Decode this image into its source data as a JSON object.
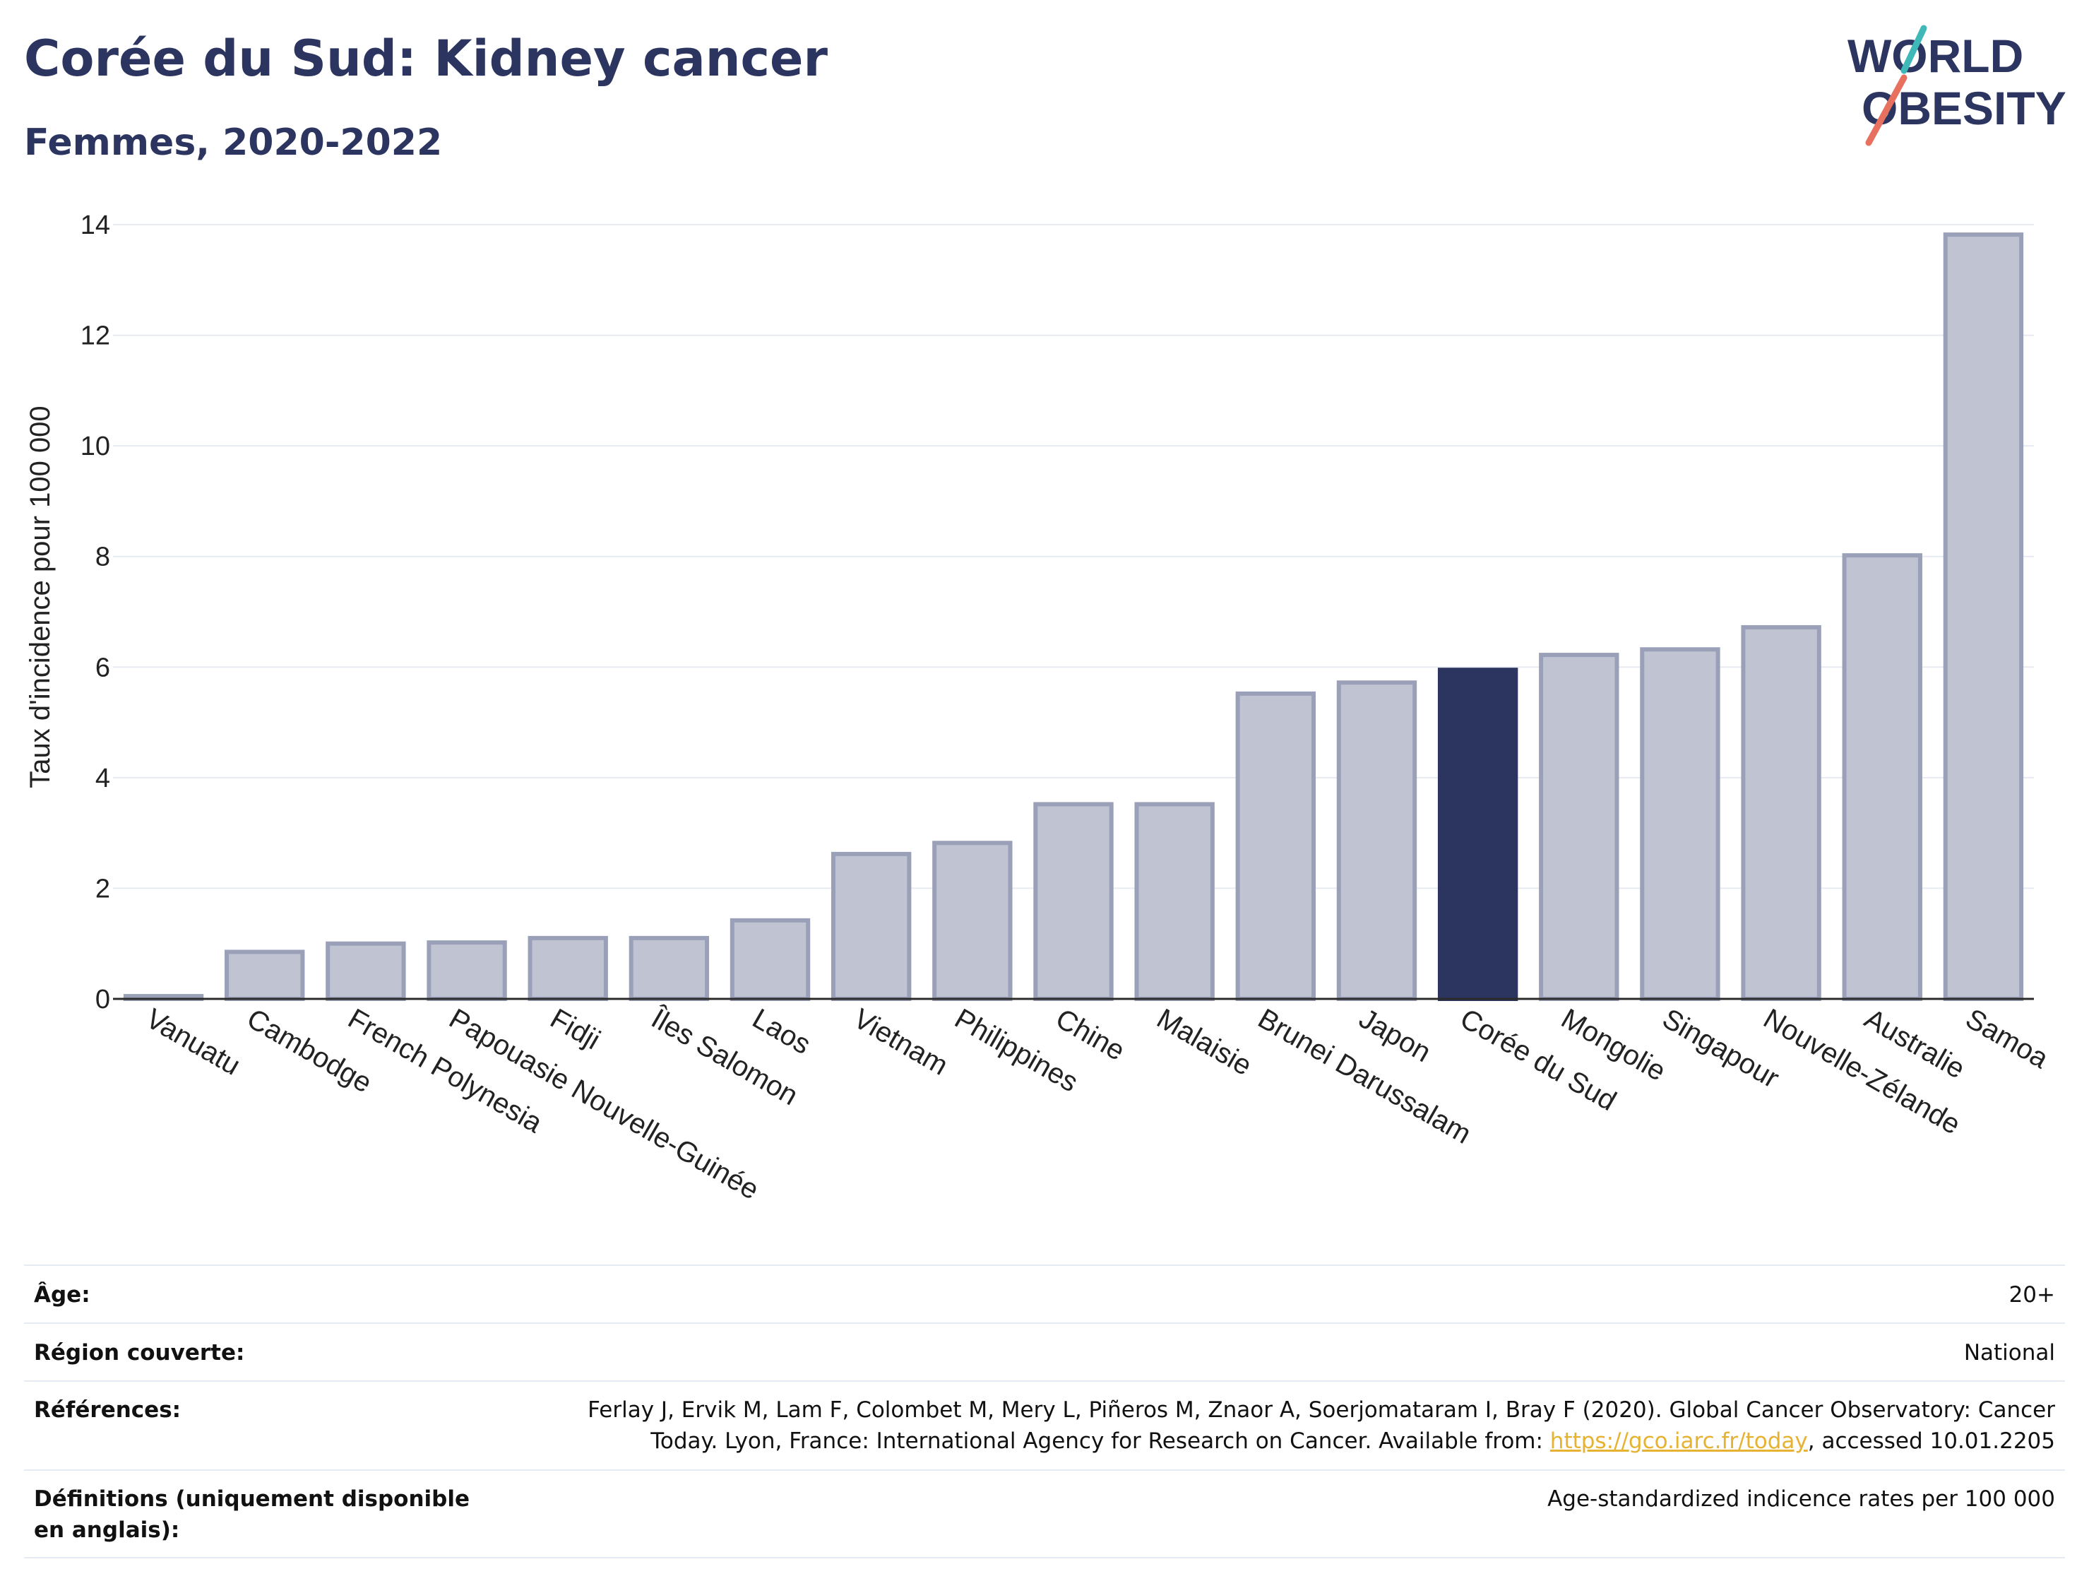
{
  "header": {
    "title": "Corée du Sud: Kidney cancer",
    "subtitle": "Femmes, 2020-2022"
  },
  "logo": {
    "line1": "WORLD",
    "line2": "OBESITY",
    "accent_teal": "#3fb8b8",
    "accent_coral": "#e8705f"
  },
  "colors": {
    "bar": "#c0c4d2",
    "bar_border": "#9aa0b8",
    "highlight": "#2b3560",
    "text": "#2b3560",
    "link": "#e6b232"
  },
  "chart_data": {
    "type": "bar",
    "title": "Corée du Sud: Kidney cancer",
    "subtitle": "Femmes, 2020-2022",
    "ylabel": "Taux d'incidence pour 100 000",
    "xlabel": "",
    "ylim": [
      0,
      14
    ],
    "yticks": [
      0,
      2,
      4,
      6,
      8,
      10,
      12,
      14
    ],
    "grid": true,
    "highlight": "Corée du Sud",
    "categories": [
      "Vanuatu",
      "Cambodge",
      "French Polynesia",
      "Papouasie Nouvelle-Guinée",
      "Fidji",
      "Îles Salomon",
      "Laos",
      "Vietnam",
      "Philippines",
      "Chine",
      "Malaisie",
      "Brunei Darussalam",
      "Japon",
      "Corée du Sud",
      "Mongolie",
      "Singapour",
      "Nouvelle-Zélande",
      "Australie",
      "Samoa"
    ],
    "values": [
      0.05,
      0.85,
      1.0,
      1.02,
      1.1,
      1.1,
      1.42,
      2.62,
      2.82,
      3.52,
      3.52,
      5.52,
      5.72,
      5.95,
      6.22,
      6.32,
      6.72,
      8.02,
      13.82
    ]
  },
  "meta": {
    "rows": [
      {
        "label": "Âge:",
        "value": "20+"
      },
      {
        "label": "Région couverte:",
        "value": "National"
      },
      {
        "label": "Références:",
        "value_pre": "Ferlay J, Ervik M, Lam F, Colombet M, Mery L, Piñeros M, Znaor A, Soerjomataram I, Bray F (2020). Global Cancer Observatory: Cancer Today. Lyon, France: International Agency for Research on Cancer. Available from: ",
        "link": "https://gco.iarc.fr/today",
        "value_post": ", accessed 10.01.2205"
      },
      {
        "label": "Définitions (uniquement disponible en anglais):",
        "value": "Age-standardized indicence rates per 100 000"
      }
    ]
  }
}
